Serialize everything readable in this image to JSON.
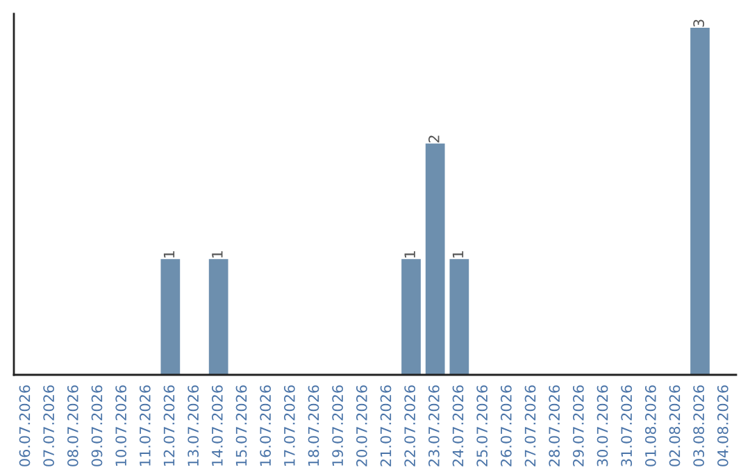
{
  "chart_data": {
    "type": "bar",
    "categories": [
      "06.07.2026",
      "07.07.2026",
      "08.07.2026",
      "09.07.2026",
      "10.07.2026",
      "11.07.2026",
      "12.07.2026",
      "13.07.2026",
      "14.07.2026",
      "15.07.2026",
      "16.07.2026",
      "17.07.2026",
      "18.07.2026",
      "19.07.2026",
      "20.07.2026",
      "21.07.2026",
      "22.07.2026",
      "23.07.2026",
      "24.07.2026",
      "25.07.2026",
      "26.07.2026",
      "27.07.2026",
      "28.07.2026",
      "29.07.2026",
      "30.07.2026",
      "31.07.2026",
      "01.08.2026",
      "02.08.2026",
      "03.08.2026",
      "04.08.2026"
    ],
    "values": [
      0,
      0,
      0,
      0,
      0,
      0,
      1,
      0,
      1,
      0,
      0,
      0,
      0,
      0,
      0,
      0,
      1,
      2,
      1,
      0,
      0,
      0,
      0,
      0,
      0,
      0,
      0,
      0,
      3,
      0
    ],
    "value_labels": [
      null,
      null,
      null,
      null,
      null,
      null,
      "1",
      null,
      "1",
      null,
      null,
      null,
      null,
      null,
      null,
      null,
      "1",
      "2",
      "1",
      null,
      null,
      null,
      null,
      null,
      null,
      null,
      null,
      null,
      "3",
      null
    ],
    "color": "#6d8fae",
    "tick_labels": "x",
    "grid": false,
    "legend": false
  }
}
